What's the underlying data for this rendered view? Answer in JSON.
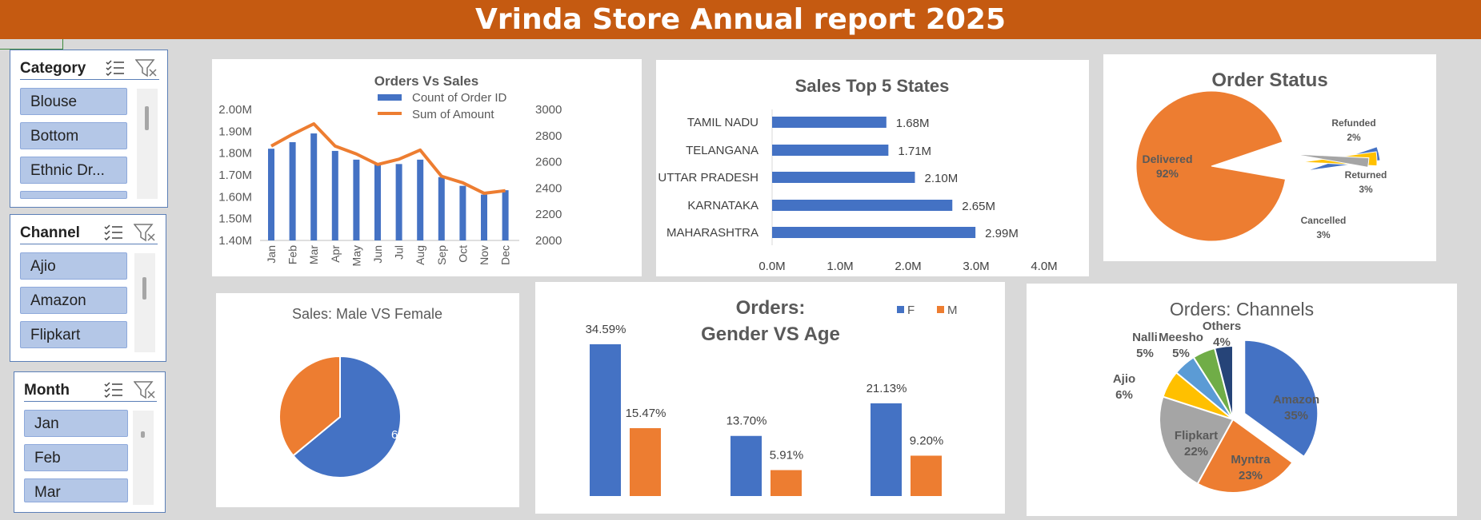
{
  "banner": {
    "title": "Vrinda Store Annual report 2025"
  },
  "slicers": {
    "category": {
      "title": "Category",
      "items": [
        "Blouse",
        "Bottom",
        "Ethnic Dr..."
      ]
    },
    "channel": {
      "title": "Channel",
      "items": [
        "Ajio",
        "Amazon",
        "Flipkart"
      ]
    },
    "month": {
      "title": "Month",
      "items": [
        "Jan",
        "Feb",
        "Mar"
      ]
    }
  },
  "chart_data": [
    {
      "id": "orders_vs_sales",
      "type": "bar+line",
      "title": "Orders Vs Sales",
      "categories": [
        "Jan",
        "Feb",
        "Mar",
        "Apr",
        "May",
        "Jun",
        "Jul",
        "Aug",
        "Sep",
        "Oct",
        "Nov",
        "Dec"
      ],
      "series": [
        {
          "name": "Count of Order ID",
          "type": "bar",
          "axis": "left",
          "color": "#4472c4",
          "values": [
            1.82,
            1.85,
            1.89,
            1.81,
            1.77,
            1.75,
            1.75,
            1.77,
            1.69,
            1.65,
            1.61,
            1.63
          ]
        },
        {
          "name": "Sum of Amount",
          "type": "line",
          "axis": "right",
          "color": "#ed7d31",
          "values": [
            2720,
            2810,
            2890,
            2720,
            2660,
            2580,
            2620,
            2690,
            2490,
            2440,
            2360,
            2380
          ]
        }
      ],
      "y_left": {
        "min": 1.4,
        "max": 2.0,
        "ticks": [
          "1.40M",
          "1.50M",
          "1.60M",
          "1.70M",
          "1.80M",
          "1.90M",
          "2.00M"
        ]
      },
      "y_right": {
        "min": 2000,
        "max": 3000,
        "ticks": [
          "2000",
          "2200",
          "2400",
          "2600",
          "2800",
          "3000"
        ]
      }
    },
    {
      "id": "top5_states",
      "type": "bar",
      "orientation": "horizontal",
      "title": "Sales Top 5 States",
      "categories": [
        "MAHARASHTRA",
        "KARNATAKA",
        "UTTAR PRADESH",
        "TELANGANA",
        "TAMIL NADU"
      ],
      "values": [
        2.99,
        2.65,
        2.1,
        1.71,
        1.68
      ],
      "labels": [
        "2.99M",
        "2.65M",
        "2.10M",
        "1.71M",
        "1.68M"
      ],
      "xlim": [
        0,
        4
      ],
      "xticks": [
        "0.0M",
        "1.0M",
        "2.0M",
        "3.0M",
        "4.0M"
      ],
      "color": "#4472c4"
    },
    {
      "id": "order_status",
      "type": "pie",
      "title": "Order Status",
      "slices": [
        {
          "name": "Delivered",
          "value": 92,
          "label": "92%",
          "color": "#ed7d31"
        },
        {
          "name": "Cancelled",
          "value": 3,
          "label": "3%",
          "color": "#4472c4"
        },
        {
          "name": "Returned",
          "value": 3,
          "label": "3%",
          "color": "#ffc000"
        },
        {
          "name": "Refunded",
          "value": 2,
          "label": "2%",
          "color": "#a5a5a5"
        }
      ]
    },
    {
      "id": "sales_gender",
      "type": "pie",
      "title": "Sales: Male VS Female",
      "slices": [
        {
          "name": "F",
          "value": 64,
          "label": "64%",
          "color": "#4472c4"
        },
        {
          "name": "M",
          "value": 36,
          "label": "36%",
          "color": "#ed7d31"
        }
      ]
    },
    {
      "id": "orders_gender_age",
      "type": "bar",
      "title_line1": "Orders:",
      "title_line2": "Gender VS Age",
      "groups": 3,
      "series": [
        {
          "name": "F",
          "color": "#4472c4",
          "values": [
            34.59,
            13.7,
            21.13
          ],
          "labels": [
            "34.59%",
            "13.70%",
            "21.13%"
          ]
        },
        {
          "name": "M",
          "color": "#ed7d31",
          "values": [
            15.47,
            5.91,
            9.2
          ],
          "labels": [
            "15.47%",
            "5.91%",
            "9.20%"
          ]
        }
      ]
    },
    {
      "id": "orders_channels",
      "type": "pie",
      "title": "Orders: Channels",
      "slices": [
        {
          "name": "Amazon",
          "value": 35,
          "label": "35%",
          "color": "#4472c4"
        },
        {
          "name": "Myntra",
          "value": 23,
          "label": "23%",
          "color": "#ed7d31"
        },
        {
          "name": "Flipkart",
          "value": 22,
          "label": "22%",
          "color": "#a5a5a5"
        },
        {
          "name": "Ajio",
          "value": 6,
          "label": "6%",
          "color": "#ffc000"
        },
        {
          "name": "Nalli",
          "value": 5,
          "label": "5%",
          "color": "#5b9bd5"
        },
        {
          "name": "Meesho",
          "value": 5,
          "label": "5%",
          "color": "#70ad47"
        },
        {
          "name": "Others",
          "value": 4,
          "label": "4%",
          "color": "#264478"
        }
      ]
    }
  ]
}
